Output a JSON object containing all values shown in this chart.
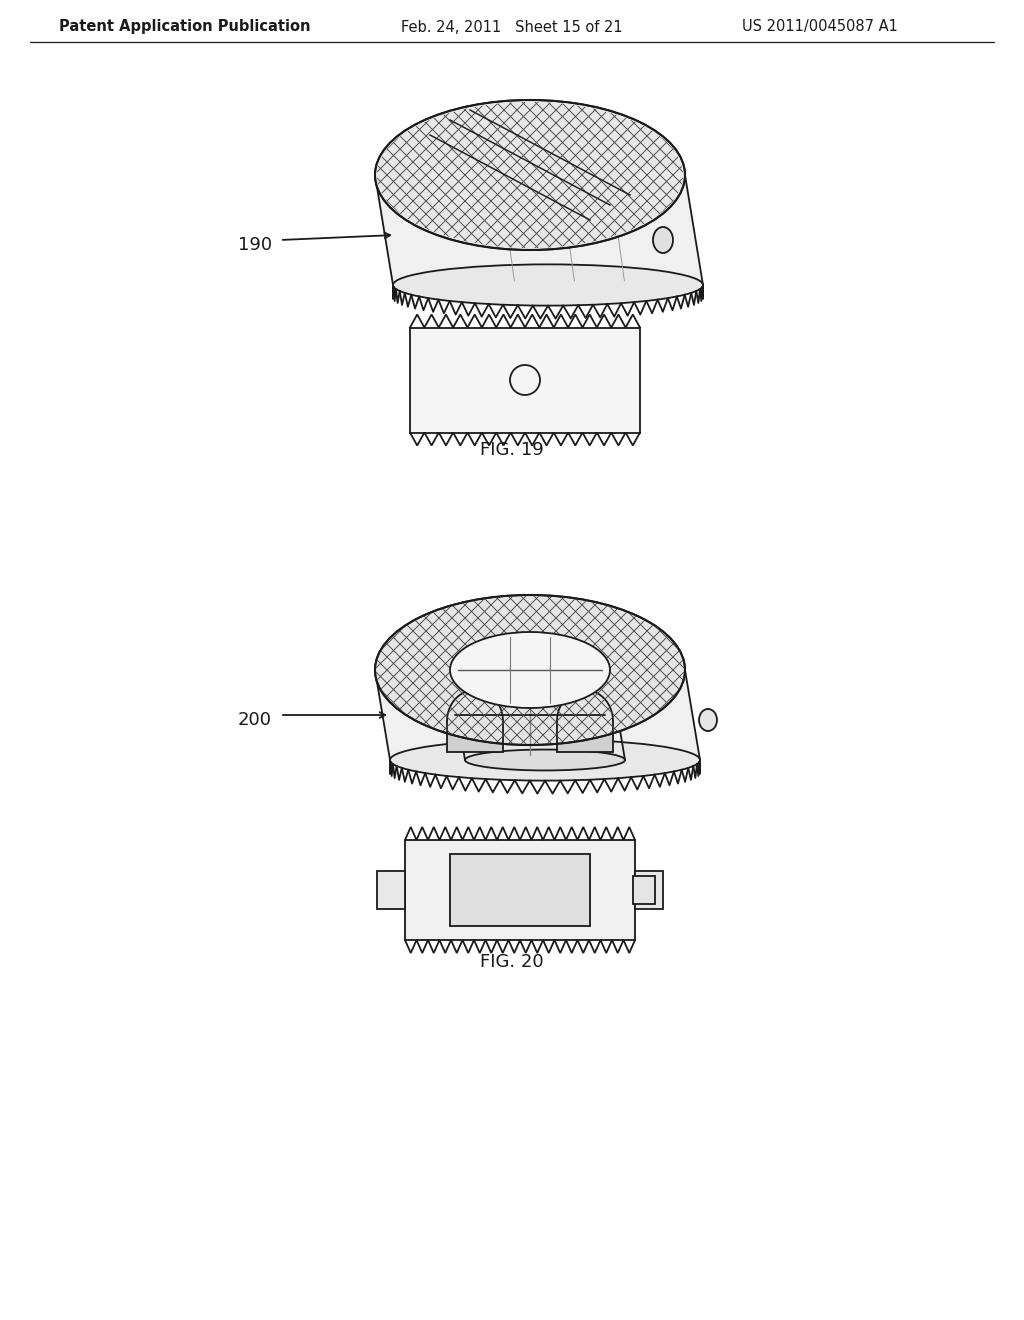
{
  "background_color": "#ffffff",
  "header_left": "Patent Application Publication",
  "header_mid": "Feb. 24, 2011   Sheet 15 of 21",
  "header_right": "US 2011/0045087 A1",
  "line_color": "#1a1a1a",
  "line_width": 1.3,
  "fig19_label": "FIG. 19",
  "fig20_label": "FIG. 20",
  "label_190": "190",
  "label_200": "200"
}
